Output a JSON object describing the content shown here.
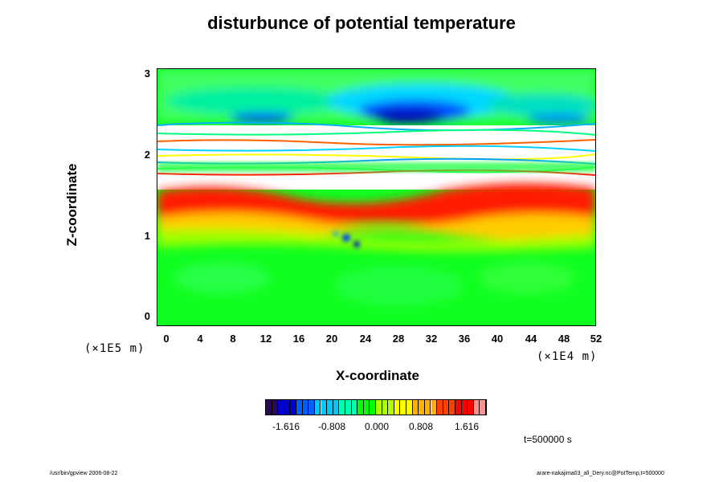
{
  "chart_data": {
    "type": "heatmap",
    "title": "disturbunce of potential temperature",
    "xlabel": "X-coordinate",
    "ylabel": "Z-coordinate",
    "x_unit": "(×1E4 m)",
    "y_unit": "(×1E5 m)",
    "xlim": [
      0,
      52
    ],
    "ylim": [
      0,
      3
    ],
    "x_ticks": [
      "0",
      "4",
      "8",
      "12",
      "16",
      "20",
      "24",
      "28",
      "32",
      "36",
      "40",
      "44",
      "48",
      "52"
    ],
    "y_ticks": [
      "0",
      "1",
      "2",
      "3"
    ],
    "colorbar": {
      "ticks": [
        "-1.616",
        "-0.808",
        "0.000",
        "0.808",
        "1.616"
      ],
      "colors": [
        "#2a0a55",
        "#0000d0",
        "#0060ff",
        "#00c8ff",
        "#00ffb0",
        "#00ff00",
        "#b0ff00",
        "#ffff00",
        "#ffb000",
        "#ff4000",
        "#ff0000",
        "#ff9090"
      ]
    },
    "annotations": [
      "t=500000 s"
    ]
  },
  "footer": {
    "left": "/usr/bin/gpview 2006-08-22",
    "right": "arare-nakajima03_all_Dery.nc@PotTemp,t=500000"
  }
}
